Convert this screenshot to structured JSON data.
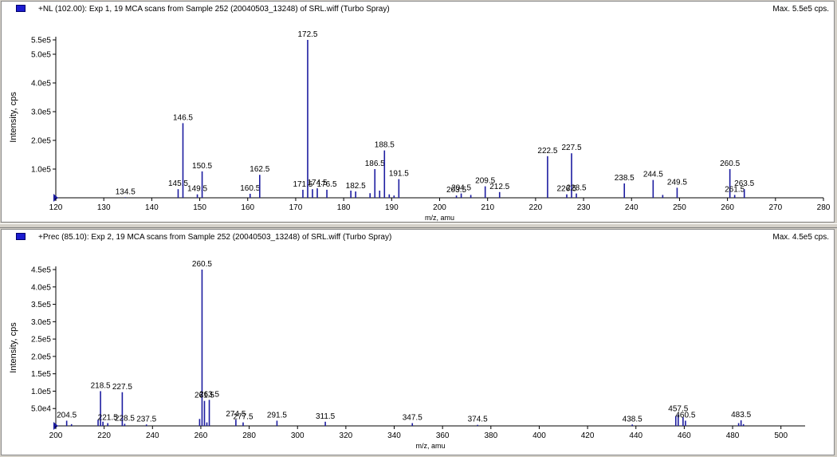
{
  "colors": {
    "peak": "#1c1ca0",
    "axis": "#000000",
    "marker": "#1c1cd0",
    "frame": "#8a8a8a"
  },
  "panes": [
    {
      "title": "+NL (102.00): Exp 1, 19 MCA scans from Sample 252 (20040503_13248) of SRL.wiff (Turbo Spray)",
      "max_label": "Max. 5.5e5 cps."
    },
    {
      "title": "+Prec (85.10): Exp 2, 19 MCA scans from Sample 252 (20040503_13248) of SRL.wiff (Turbo Spray)",
      "max_label": "Max. 4.5e5 cps."
    }
  ],
  "chart_data": [
    {
      "type": "bar",
      "title": "+NL (102.00): Exp 1, 19 MCA scans from Sample 252 (20040503_13248) of SRL.wiff (Turbo Spray)",
      "xlabel": "m/z, amu",
      "ylabel": "Intensity, cps",
      "xlim": [
        120,
        280
      ],
      "ylim": [
        0,
        550000
      ],
      "x_ticks": [
        120,
        130,
        140,
        150,
        160,
        170,
        180,
        190,
        200,
        210,
        220,
        230,
        240,
        250,
        260,
        270,
        280
      ],
      "y_ticks": [
        {
          "v": 100000,
          "label": "1.0e5"
        },
        {
          "v": 200000,
          "label": "2.0e5"
        },
        {
          "v": 300000,
          "label": "3.0e5"
        },
        {
          "v": 400000,
          "label": "4.0e5"
        },
        {
          "v": 500000,
          "label": "5.0e5"
        },
        {
          "v": 550000,
          "label": "5.5e5"
        }
      ],
      "peaks": [
        {
          "x": 134.5,
          "y": 2000,
          "label": "134.5"
        },
        {
          "x": 145.5,
          "y": 30000,
          "label": "145.5"
        },
        {
          "x": 146.5,
          "y": 260000,
          "label": "146.5"
        },
        {
          "x": 149.5,
          "y": 12000,
          "label": "149.5"
        },
        {
          "x": 150.5,
          "y": 92000,
          "label": "150.5"
        },
        {
          "x": 160.5,
          "y": 14000,
          "label": "160.5"
        },
        {
          "x": 162.5,
          "y": 80000,
          "label": "162.5"
        },
        {
          "x": 171.5,
          "y": 28000,
          "label": "171.5"
        },
        {
          "x": 172.5,
          "y": 550000,
          "label": "172.5"
        },
        {
          "x": 173.5,
          "y": 30000,
          "label": ""
        },
        {
          "x": 174.5,
          "y": 33000,
          "label": "174.5"
        },
        {
          "x": 176.5,
          "y": 28000,
          "label": "176.5"
        },
        {
          "x": 181.5,
          "y": 25000,
          "label": ""
        },
        {
          "x": 182.5,
          "y": 22000,
          "label": "182.5"
        },
        {
          "x": 185.5,
          "y": 16000,
          "label": ""
        },
        {
          "x": 186.5,
          "y": 100000,
          "label": "186.5"
        },
        {
          "x": 187.5,
          "y": 25000,
          "label": ""
        },
        {
          "x": 188.5,
          "y": 165000,
          "label": "188.5"
        },
        {
          "x": 189.5,
          "y": 12000,
          "label": ""
        },
        {
          "x": 190.5,
          "y": 8000,
          "label": ""
        },
        {
          "x": 191.5,
          "y": 65000,
          "label": "191.5"
        },
        {
          "x": 203.5,
          "y": 8000,
          "label": "203.5"
        },
        {
          "x": 204.5,
          "y": 15000,
          "label": "204.5"
        },
        {
          "x": 206.5,
          "y": 10000,
          "label": ""
        },
        {
          "x": 209.5,
          "y": 40000,
          "label": "209.5"
        },
        {
          "x": 212.5,
          "y": 20000,
          "label": "212.5"
        },
        {
          "x": 222.5,
          "y": 145000,
          "label": "222.5"
        },
        {
          "x": 226.5,
          "y": 12000,
          "label": "226.5"
        },
        {
          "x": 227.5,
          "y": 155000,
          "label": "227.5"
        },
        {
          "x": 228.5,
          "y": 15000,
          "label": "228.5"
        },
        {
          "x": 238.5,
          "y": 50000,
          "label": "238.5"
        },
        {
          "x": 244.5,
          "y": 62000,
          "label": "244.5"
        },
        {
          "x": 246.5,
          "y": 10000,
          "label": ""
        },
        {
          "x": 249.5,
          "y": 35000,
          "label": "249.5"
        },
        {
          "x": 260.5,
          "y": 100000,
          "label": "260.5"
        },
        {
          "x": 261.5,
          "y": 10000,
          "label": "261.5"
        },
        {
          "x": 263.5,
          "y": 30000,
          "label": "263.5"
        }
      ]
    },
    {
      "type": "bar",
      "title": "+Prec (85.10): Exp 2, 19 MCA scans from Sample 252 (20040503_13248) of SRL.wiff (Turbo Spray)",
      "xlabel": "m/z, amu",
      "ylabel": "Intensity, cps",
      "xlim": [
        200,
        510
      ],
      "ylim": [
        0,
        450000
      ],
      "x_ticks": [
        200,
        220,
        240,
        260,
        280,
        300,
        320,
        340,
        360,
        380,
        400,
        420,
        440,
        460,
        480,
        500
      ],
      "y_ticks": [
        {
          "v": 50000,
          "label": "5.0e4"
        },
        {
          "v": 100000,
          "label": "1.0e5"
        },
        {
          "v": 150000,
          "label": "1.5e5"
        },
        {
          "v": 200000,
          "label": "2.0e5"
        },
        {
          "v": 250000,
          "label": "2.5e5"
        },
        {
          "v": 300000,
          "label": "3.0e5"
        },
        {
          "v": 350000,
          "label": "3.5e5"
        },
        {
          "v": 400000,
          "label": "4.0e5"
        },
        {
          "v": 450000,
          "label": "4.5e5"
        }
      ],
      "peaks": [
        {
          "x": 204.5,
          "y": 15000,
          "label": "204.5"
        },
        {
          "x": 206.5,
          "y": 5000,
          "label": ""
        },
        {
          "x": 217.5,
          "y": 18000,
          "label": ""
        },
        {
          "x": 218.5,
          "y": 100000,
          "label": "218.5"
        },
        {
          "x": 219.5,
          "y": 12000,
          "label": ""
        },
        {
          "x": 221.5,
          "y": 8000,
          "label": "221.5"
        },
        {
          "x": 227.5,
          "y": 97000,
          "label": "227.5"
        },
        {
          "x": 228.5,
          "y": 6000,
          "label": "228.5"
        },
        {
          "x": 237.5,
          "y": 4000,
          "label": "237.5"
        },
        {
          "x": 259.5,
          "y": 20000,
          "label": ""
        },
        {
          "x": 260.5,
          "y": 450000,
          "label": "260.5"
        },
        {
          "x": 261.5,
          "y": 72000,
          "label": "261.5"
        },
        {
          "x": 262.5,
          "y": 10000,
          "label": ""
        },
        {
          "x": 263.5,
          "y": 75000,
          "label": "263.5"
        },
        {
          "x": 274.5,
          "y": 18000,
          "label": "274.5"
        },
        {
          "x": 277.5,
          "y": 10000,
          "label": "277.5"
        },
        {
          "x": 291.5,
          "y": 15000,
          "label": "291.5"
        },
        {
          "x": 311.5,
          "y": 12000,
          "label": "311.5"
        },
        {
          "x": 347.5,
          "y": 8000,
          "label": "347.5"
        },
        {
          "x": 374.5,
          "y": 3000,
          "label": "374.5"
        },
        {
          "x": 438.5,
          "y": 4000,
          "label": "438.5"
        },
        {
          "x": 456.5,
          "y": 28000,
          "label": ""
        },
        {
          "x": 457.5,
          "y": 33000,
          "label": "457.5"
        },
        {
          "x": 459.5,
          "y": 25000,
          "label": ""
        },
        {
          "x": 460.5,
          "y": 15000,
          "label": "460.5"
        },
        {
          "x": 482.5,
          "y": 8000,
          "label": ""
        },
        {
          "x": 483.5,
          "y": 16000,
          "label": "483.5"
        },
        {
          "x": 484.5,
          "y": 5000,
          "label": ""
        }
      ]
    }
  ]
}
